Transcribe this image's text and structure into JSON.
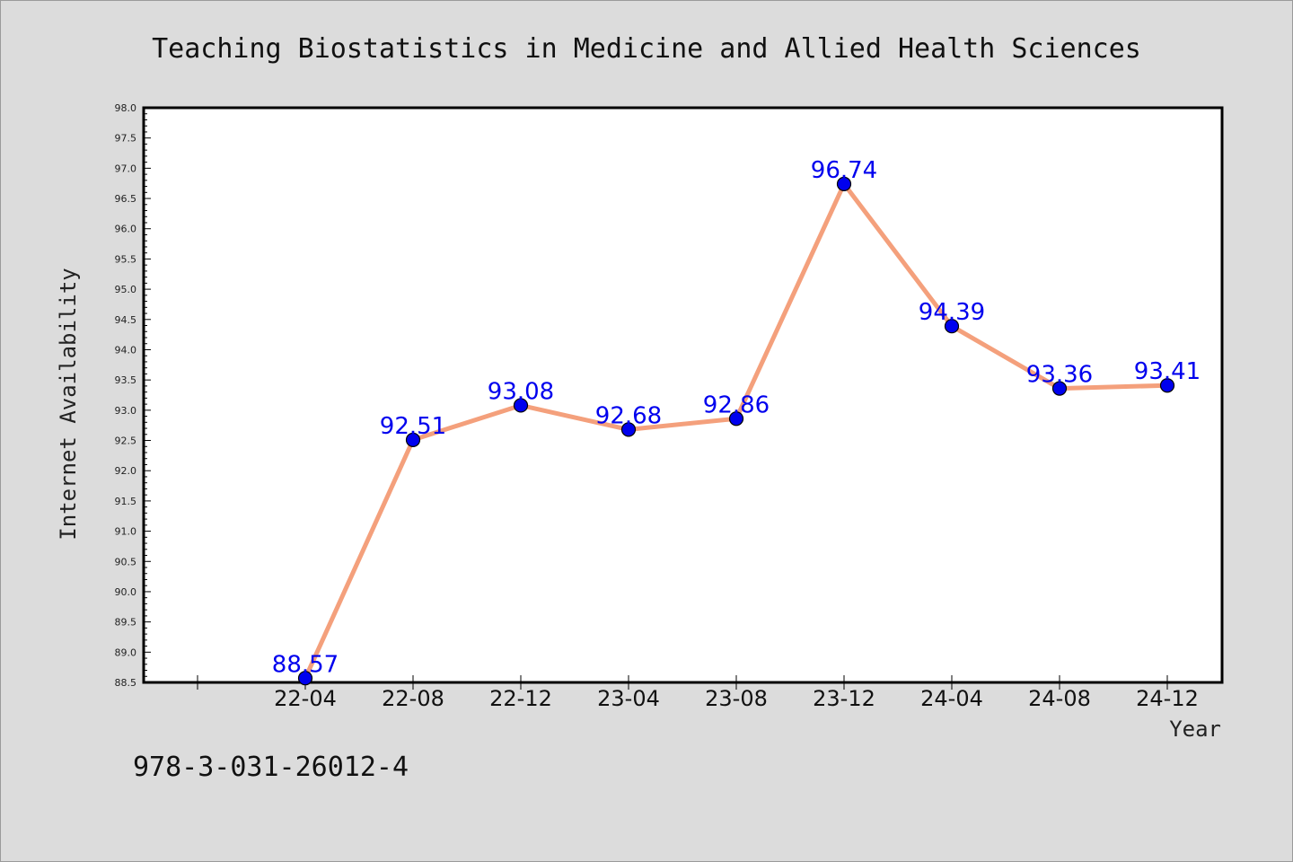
{
  "chart_data": {
    "type": "line",
    "title": "Teaching Biostatistics in Medicine and Allied Health Sciences",
    "xlabel": "Year",
    "ylabel": "Internet Availability",
    "categories": [
      "22-04",
      "22-08",
      "22-12",
      "23-04",
      "23-08",
      "23-12",
      "24-04",
      "24-08",
      "24-12"
    ],
    "series": [
      {
        "values": [
          88.57,
          92.51,
          93.08,
          92.68,
          92.86,
          96.74,
          94.39,
          93.36,
          93.41
        ],
        "labels": [
          "88.57",
          "92.51",
          "93.08",
          "92.68",
          "92.86",
          "96.74",
          "94.39",
          "93.36",
          "93.41"
        ],
        "line_color": "#f4a07c",
        "marker_color": "#0000ee"
      }
    ],
    "ylim": [
      88.5,
      98.0
    ],
    "yticks": [
      "88.5",
      "89.0",
      "89.5",
      "90.0",
      "90.5",
      "91.0",
      "91.5",
      "92.0",
      "92.5",
      "93.0",
      "93.5",
      "94.0",
      "94.5",
      "95.0",
      "95.5",
      "96.0",
      "96.5",
      "97.0",
      "97.5",
      "98.0"
    ],
    "grid": false,
    "legend": "none"
  },
  "footer_code": "978-3-031-26012-4",
  "colors": {
    "background": "#dcdcdc",
    "plot_background": "#ffffff",
    "axis": "#000000",
    "label_text": "#0000ee"
  }
}
